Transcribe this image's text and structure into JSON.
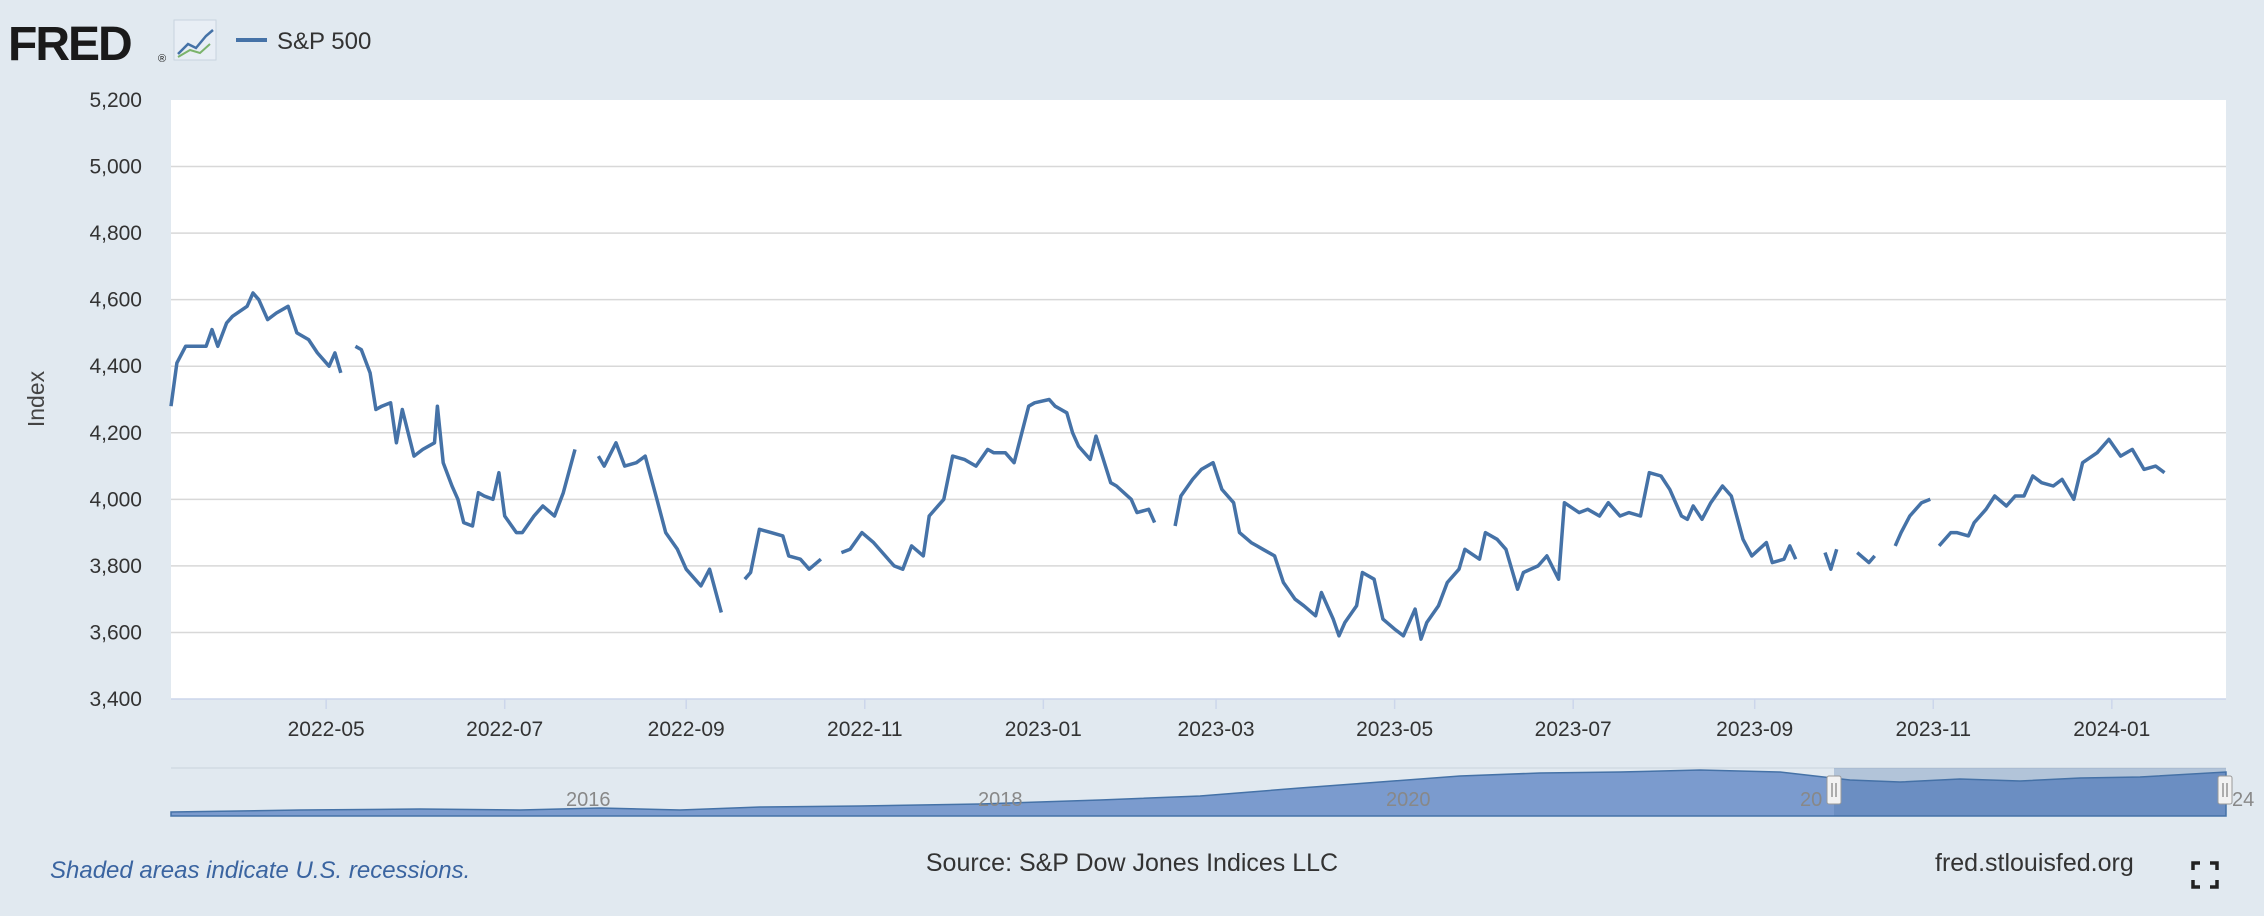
{
  "logo": {
    "text": "FRED",
    "registered": "®"
  },
  "legend": {
    "label": "S&P 500"
  },
  "colors": {
    "line": "#4572a7",
    "background": "#e1e9f0",
    "plot": "#ffffff",
    "grid": "#d8d8d8",
    "navigator_fill": "#7b9bce"
  },
  "footer": {
    "note": "Shaded areas indicate U.S. recessions.",
    "source": "Source: S&P Dow Jones Indices LLC",
    "site": "fred.stlouisfed.org"
  },
  "icons": {
    "logo_chart": "line-chart-icon",
    "fullscreen": "fullscreen-icon"
  },
  "navigator": {
    "labels": [
      "2016",
      "2018",
      "2020",
      "20",
      "24"
    ]
  },
  "chart_data": {
    "type": "line",
    "title": "",
    "xlabel": "",
    "ylabel": "Index",
    "ylim": [
      3400,
      5200
    ],
    "yticks": [
      "3,400",
      "3,600",
      "3,800",
      "4,000",
      "4,200",
      "4,400",
      "4,600",
      "4,800",
      "5,000",
      "5,200"
    ],
    "xlim": [
      "2022-03-09",
      "2024-02-09"
    ],
    "xticks": [
      "2022-05",
      "2022-07",
      "2022-09",
      "2022-11",
      "2023-01",
      "2023-03",
      "2023-05",
      "2023-07",
      "2023-09",
      "2023-11",
      "2024-01"
    ],
    "grid": true,
    "legend_position": "top-left",
    "series": [
      {
        "name": "S&P 500",
        "segments": [
          [
            [
              "2022-03-09",
              4280
            ],
            [
              "2022-03-11",
              4410
            ],
            [
              "2022-03-14",
              4460
            ],
            [
              "2022-03-17",
              4460
            ],
            [
              "2022-03-21",
              4460
            ],
            [
              "2022-03-23",
              4510
            ],
            [
              "2022-03-25",
              4460
            ],
            [
              "2022-03-28",
              4530
            ],
            [
              "2022-03-30",
              4550
            ],
            [
              "2022-04-04",
              4580
            ],
            [
              "2022-04-06",
              4620
            ],
            [
              "2022-04-08",
              4600
            ],
            [
              "2022-04-11",
              4540
            ],
            [
              "2022-04-14",
              4560
            ],
            [
              "2022-04-18",
              4580
            ],
            [
              "2022-04-21",
              4500
            ],
            [
              "2022-04-25",
              4480
            ],
            [
              "2022-04-28",
              4440
            ],
            [
              "2022-05-02",
              4400
            ],
            [
              "2022-05-04",
              4440
            ],
            [
              "2022-05-06",
              4380
            ]
          ],
          [
            [
              "2022-05-11",
              4460
            ],
            [
              "2022-05-13",
              4450
            ],
            [
              "2022-05-16",
              4380
            ],
            [
              "2022-05-18",
              4270
            ],
            [
              "2022-05-20",
              4280
            ],
            [
              "2022-05-23",
              4290
            ],
            [
              "2022-05-25",
              4170
            ],
            [
              "2022-05-27",
              4270
            ],
            [
              "2022-05-31",
              4130
            ],
            [
              "2022-06-03",
              4150
            ],
            [
              "2022-06-07",
              4170
            ],
            [
              "2022-06-08",
              4280
            ],
            [
              "2022-06-10",
              4110
            ],
            [
              "2022-06-13",
              4040
            ],
            [
              "2022-06-15",
              4000
            ],
            [
              "2022-06-17",
              3930
            ],
            [
              "2022-06-20",
              3920
            ],
            [
              "2022-06-22",
              4020
            ],
            [
              "2022-06-24",
              4010
            ],
            [
              "2022-06-27",
              4000
            ],
            [
              "2022-06-29",
              4080
            ],
            [
              "2022-07-01",
              3950
            ],
            [
              "2022-07-05",
              3900
            ],
            [
              "2022-07-07",
              3900
            ],
            [
              "2022-07-11",
              3950
            ],
            [
              "2022-07-14",
              3980
            ],
            [
              "2022-07-18",
              3950
            ],
            [
              "2022-07-21",
              4020
            ],
            [
              "2022-07-25",
              4150
            ]
          ],
          [
            [
              "2022-08-02",
              4130
            ],
            [
              "2022-08-04",
              4100
            ],
            [
              "2022-08-08",
              4170
            ],
            [
              "2022-08-11",
              4100
            ],
            [
              "2022-08-15",
              4110
            ],
            [
              "2022-08-18",
              4130
            ],
            [
              "2022-08-22",
              4000
            ],
            [
              "2022-08-25",
              3900
            ],
            [
              "2022-08-29",
              3850
            ],
            [
              "2022-09-01",
              3790
            ],
            [
              "2022-09-06",
              3740
            ],
            [
              "2022-09-09",
              3790
            ],
            [
              "2022-09-13",
              3660
            ]
          ],
          [
            [
              "2022-09-21",
              3760
            ],
            [
              "2022-09-23",
              3780
            ],
            [
              "2022-09-26",
              3910
            ],
            [
              "2022-09-30",
              3900
            ],
            [
              "2022-10-04",
              3890
            ],
            [
              "2022-10-06",
              3830
            ],
            [
              "2022-10-10",
              3820
            ],
            [
              "2022-10-13",
              3790
            ],
            [
              "2022-10-17",
              3820
            ]
          ],
          [
            [
              "2022-10-24",
              3840
            ],
            [
              "2022-10-27",
              3850
            ],
            [
              "2022-10-31",
              3900
            ],
            [
              "2022-11-04",
              3870
            ],
            [
              "2022-11-08",
              3830
            ],
            [
              "2022-11-11",
              3800
            ],
            [
              "2022-11-14",
              3790
            ],
            [
              "2022-11-17",
              3860
            ],
            [
              "2022-11-21",
              3830
            ],
            [
              "2022-11-23",
              3950
            ],
            [
              "2022-11-28",
              4000
            ],
            [
              "2022-12-01",
              4130
            ],
            [
              "2022-12-05",
              4120
            ],
            [
              "2022-12-09",
              4100
            ],
            [
              "2022-12-13",
              4150
            ],
            [
              "2022-12-15",
              4140
            ],
            [
              "2022-12-19",
              4140
            ],
            [
              "2022-12-22",
              4110
            ],
            [
              "2022-12-27",
              4280
            ],
            [
              "2022-12-29",
              4290
            ],
            [
              "2023-01-03",
              4300
            ],
            [
              "2023-01-05",
              4280
            ],
            [
              "2023-01-09",
              4260
            ],
            [
              "2023-01-11",
              4200
            ],
            [
              "2023-01-13",
              4160
            ],
            [
              "2023-01-17",
              4120
            ],
            [
              "2023-01-19",
              4190
            ],
            [
              "2023-01-24",
              4050
            ],
            [
              "2023-01-26",
              4040
            ],
            [
              "2023-01-31",
              4000
            ],
            [
              "2023-02-02",
              3960
            ],
            [
              "2023-02-06",
              3970
            ],
            [
              "2023-02-08",
              3930
            ]
          ],
          [
            [
              "2023-02-15",
              3920
            ],
            [
              "2023-02-17",
              4010
            ],
            [
              "2023-02-21",
              4060
            ],
            [
              "2023-02-24",
              4090
            ],
            [
              "2023-02-28",
              4110
            ],
            [
              "2023-03-03",
              4030
            ],
            [
              "2023-03-07",
              3990
            ],
            [
              "2023-03-09",
              3900
            ],
            [
              "2023-03-13",
              3870
            ],
            [
              "2023-03-15",
              3860
            ],
            [
              "2023-03-17",
              3850
            ],
            [
              "2023-03-21",
              3830
            ],
            [
              "2023-03-24",
              3750
            ],
            [
              "2023-03-28",
              3700
            ],
            [
              "2023-03-31",
              3680
            ],
            [
              "2023-04-04",
              3650
            ],
            [
              "2023-04-06",
              3720
            ],
            [
              "2023-04-10",
              3640
            ],
            [
              "2023-04-12",
              3590
            ],
            [
              "2023-04-14",
              3630
            ],
            [
              "2023-04-18",
              3680
            ],
            [
              "2023-04-20",
              3780
            ],
            [
              "2023-04-24",
              3760
            ],
            [
              "2023-04-27",
              3640
            ],
            [
              "2023-05-01",
              3610
            ],
            [
              "2023-05-04",
              3590
            ],
            [
              "2023-05-08",
              3670
            ],
            [
              "2023-05-10",
              3580
            ],
            [
              "2023-05-12",
              3630
            ],
            [
              "2023-05-16",
              3680
            ],
            [
              "2023-05-19",
              3750
            ],
            [
              "2023-05-23",
              3790
            ],
            [
              "2023-05-25",
              3850
            ],
            [
              "2023-05-30",
              3820
            ],
            [
              "2023-06-01",
              3900
            ],
            [
              "2023-06-05",
              3880
            ],
            [
              "2023-06-08",
              3850
            ],
            [
              "2023-06-12",
              3730
            ],
            [
              "2023-06-14",
              3780
            ],
            [
              "2023-06-19",
              3800
            ],
            [
              "2023-06-22",
              3830
            ],
            [
              "2023-06-26",
              3760
            ],
            [
              "2023-06-28",
              3990
            ],
            [
              "2023-07-03",
              3960
            ],
            [
              "2023-07-06",
              3970
            ],
            [
              "2023-07-10",
              3950
            ],
            [
              "2023-07-13",
              3990
            ],
            [
              "2023-07-17",
              3950
            ],
            [
              "2023-07-20",
              3960
            ],
            [
              "2023-07-24",
              3950
            ],
            [
              "2023-07-27",
              4080
            ],
            [
              "2023-07-31",
              4070
            ],
            [
              "2023-08-03",
              4030
            ],
            [
              "2023-08-07",
              3950
            ],
            [
              "2023-08-09",
              3940
            ],
            [
              "2023-08-11",
              3980
            ],
            [
              "2023-08-14",
              3940
            ],
            [
              "2023-08-17",
              3990
            ],
            [
              "2023-08-21",
              4040
            ],
            [
              "2023-08-24",
              4010
            ],
            [
              "2023-08-28",
              3880
            ],
            [
              "2023-08-31",
              3830
            ],
            [
              "2023-09-05",
              3870
            ],
            [
              "2023-09-07",
              3810
            ],
            [
              "2023-09-11",
              3820
            ],
            [
              "2023-09-13",
              3860
            ],
            [
              "2023-09-15",
              3820
            ]
          ],
          [
            [
              "2023-09-25",
              3840
            ],
            [
              "2023-09-27",
              3790
            ],
            [
              "2023-09-29",
              3850
            ]
          ],
          [
            [
              "2023-10-06",
              3840
            ],
            [
              "2023-10-10",
              3810
            ],
            [
              "2023-10-12",
              3830
            ]
          ],
          [
            [
              "2023-10-19",
              3860
            ],
            [
              "2023-10-21",
              3900
            ],
            [
              "2023-10-24",
              3950
            ],
            [
              "2023-10-28",
              3990
            ],
            [
              "2023-10-31",
              4000
            ]
          ],
          [
            [
              "2023-11-03",
              3860
            ],
            [
              "2023-11-07",
              3900
            ],
            [
              "2023-11-09",
              3900
            ],
            [
              "2023-11-13",
              3890
            ],
            [
              "2023-11-15",
              3930
            ],
            [
              "2023-11-19",
              3970
            ],
            [
              "2023-11-22",
              4010
            ],
            [
              "2023-11-26",
              3980
            ],
            [
              "2023-11-29",
              4010
            ],
            [
              "2023-12-02",
              4010
            ],
            [
              "2023-12-05",
              4070
            ],
            [
              "2023-12-08",
              4050
            ],
            [
              "2023-12-12",
              4040
            ],
            [
              "2023-12-15",
              4060
            ],
            [
              "2023-12-19",
              4000
            ],
            [
              "2023-12-22",
              4110
            ],
            [
              "2023-12-27",
              4140
            ],
            [
              "2023-12-31",
              4180
            ],
            [
              "2024-01-04",
              4130
            ],
            [
              "2024-01-08",
              4150
            ],
            [
              "2024-01-12",
              4090
            ],
            [
              "2024-01-16",
              4100
            ],
            [
              "2024-01-19",
              4080
            ]
          ]
        ]
      }
    ]
  }
}
